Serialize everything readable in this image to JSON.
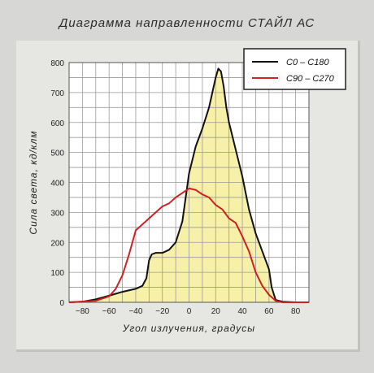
{
  "title": "Диаграмма  направленности СТАЙЛ АС",
  "chart_data": {
    "type": "line",
    "title": "Диаграмма  направленности СТАЙЛ АС",
    "xlabel": "Угол излучения, градусы",
    "ylabel": "Сила света, кд/клм",
    "xlim": [
      -90,
      90
    ],
    "ylim": [
      0,
      800
    ],
    "xticks": [
      -80,
      -60,
      -40,
      -20,
      0,
      20,
      40,
      60,
      80
    ],
    "yticks": [
      0,
      100,
      200,
      300,
      400,
      500,
      600,
      700,
      800
    ],
    "grid": true,
    "legend_position": "top-right",
    "series": [
      {
        "name": "C0 – C180",
        "color": "#111111",
        "fill": "#f7f0a8",
        "x": [
          -90,
          -80,
          -70,
          -60,
          -50,
          -40,
          -35,
          -32,
          -30,
          -28,
          -25,
          -20,
          -15,
          -10,
          -5,
          0,
          5,
          10,
          15,
          20,
          22,
          24,
          26,
          28,
          30,
          35,
          40,
          45,
          50,
          55,
          60,
          62,
          65,
          70,
          80,
          90
        ],
        "y": [
          0,
          2,
          10,
          22,
          35,
          45,
          55,
          80,
          140,
          160,
          165,
          165,
          175,
          200,
          270,
          430,
          520,
          580,
          650,
          750,
          780,
          770,
          720,
          650,
          600,
          510,
          420,
          310,
          230,
          170,
          110,
          50,
          8,
          2,
          0,
          0
        ]
      },
      {
        "name": "C90 – C270",
        "color": "#cc2222",
        "x": [
          -90,
          -70,
          -60,
          -55,
          -50,
          -45,
          -40,
          -35,
          -30,
          -25,
          -20,
          -15,
          -10,
          -5,
          0,
          5,
          10,
          15,
          20,
          25,
          30,
          35,
          40,
          45,
          50,
          55,
          60,
          65,
          70,
          90
        ],
        "y": [
          0,
          5,
          20,
          45,
          90,
          160,
          240,
          260,
          280,
          300,
          320,
          330,
          350,
          365,
          380,
          375,
          360,
          350,
          325,
          310,
          280,
          265,
          220,
          170,
          100,
          55,
          25,
          5,
          0,
          0
        ]
      }
    ]
  }
}
